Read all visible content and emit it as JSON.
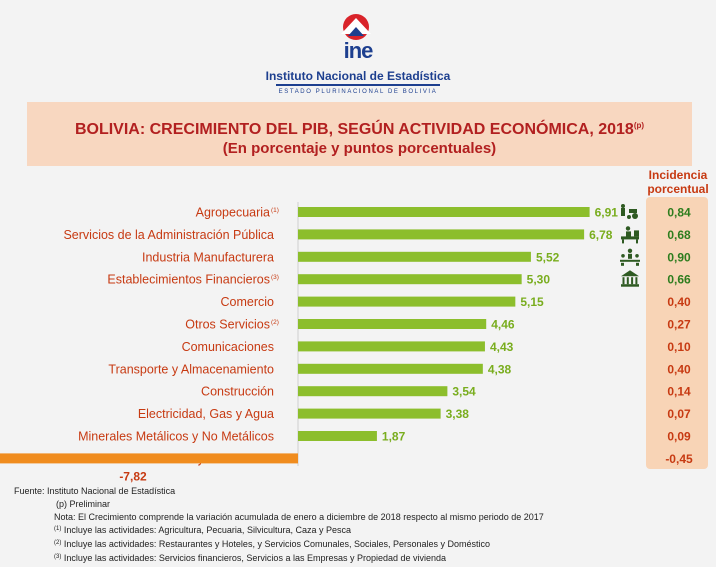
{
  "header": {
    "logo_text": "ine",
    "institute": "Instituto Nacional de Estadística",
    "state": "ESTADO PLURINACIONAL DE BOLIVIA"
  },
  "title": {
    "line1": "BOLIVIA: CRECIMIENTO DEL PIB, SEGÚN ACTIVIDAD ECONÓMICA, 2018",
    "line1_sup": "(p)",
    "line2": "(En porcentaje y puntos porcentuales)"
  },
  "incidence_header": "Incidencia porcentual",
  "colors": {
    "positive": "#8cbe2c",
    "negative": "#f08c1e",
    "category_text": "#c73a12",
    "value_text": "#79ad1e",
    "negative_text": "#c73a12",
    "incidence_positive": "#2e7d1e",
    "incidence_negative": "#c73a12"
  },
  "chart_data": {
    "type": "bar",
    "orientation": "horizontal",
    "categories": [
      "Agropecuaria",
      "Servicios de la Administración Pública",
      "Industria Manufacturera",
      "Establecimientos Financieros",
      "Comercio",
      "Otros Servicios",
      "Comunicaciones",
      "Transporte y Almacenamiento",
      "Construcción",
      "Electricidad, Gas y Agua",
      "Minerales Metálicos y No Metálicos",
      "Petróleo Crudo y Gas Natural"
    ],
    "category_superscripts": [
      "(1)",
      "",
      "",
      "(3)",
      "",
      "(2)",
      "",
      "",
      "",
      "",
      "",
      ""
    ],
    "values": [
      6.91,
      6.78,
      5.52,
      5.3,
      5.15,
      4.46,
      4.43,
      4.38,
      3.54,
      3.38,
      1.87,
      -7.82
    ],
    "value_labels": [
      "6,91",
      "6,78",
      "5,52",
      "5,30",
      "5,15",
      "4,46",
      "4,43",
      "4,38",
      "3,54",
      "3,38",
      "1,87",
      "-7,82"
    ],
    "incidence": [
      0.84,
      0.68,
      0.9,
      0.66,
      0.4,
      0.27,
      0.1,
      0.4,
      0.14,
      0.07,
      0.09,
      -0.45
    ],
    "incidence_labels": [
      "0,84",
      "0,68",
      "0,90",
      "0,66",
      "0,40",
      "0,27",
      "0,10",
      "0,40",
      "0,14",
      "0,07",
      "0,09",
      "-0,45"
    ],
    "icons": [
      "farmer-tractor-icon",
      "public-administration-desk-icon",
      "manufacturing-workers-icon",
      "bank-building-icon",
      "",
      "",
      "",
      "",
      "",
      "",
      "",
      ""
    ]
  },
  "notes": {
    "source": "Fuente: Instituto Nacional de Estadística",
    "preliminary": "(p) Preliminar",
    "note": "Nota: El Crecimiento  comprende la variación acumulada de enero a diciembre de 2018 respecto al mismo periodo de 2017",
    "n1_sup": "(1)",
    "n1": " Incluye las actividades: Agricultura, Pecuaria, Silvicultura, Caza y Pesca",
    "n2_sup": "(2)",
    "n2": " Incluye las actividades: Restaurantes y Hoteles, y Servicios Comunales, Sociales, Personales y Doméstico",
    "n3_sup": "(3)",
    "n3": " Incluye las actividades: Servicios financieros, Servicios a las Empresas y Propiedad de vivienda"
  }
}
